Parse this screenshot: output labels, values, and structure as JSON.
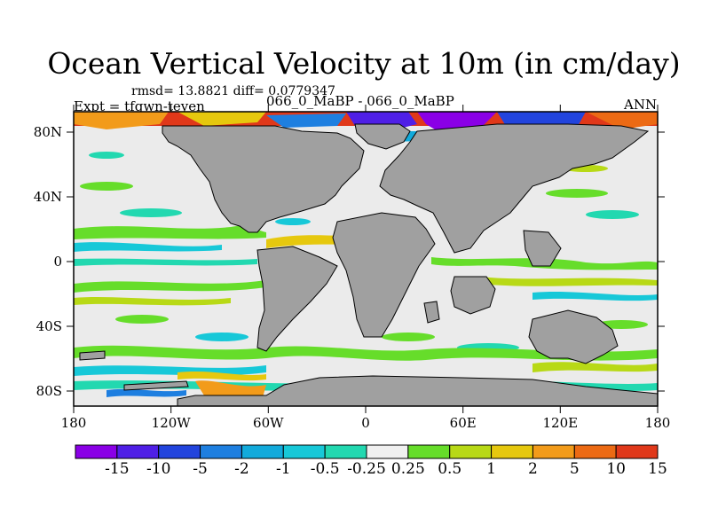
{
  "title": "Ocean Vertical Velocity at 10m (in cm/day)",
  "stats": {
    "rmsd_label": "rmsd= 13.8821",
    "diff_label": "diff= 0.0779347"
  },
  "experiment": "Expt = tfgwn-teyen",
  "case_label": "066_0_MaBP - 066_0_MaBP",
  "season": "ANN",
  "map": {
    "projection": "cylindrical equidistant",
    "lon_ticks": [
      "180",
      "120W",
      "60W",
      "0",
      "60E",
      "120E",
      "180"
    ],
    "lat_ticks": [
      "80N",
      "40N",
      "0",
      "40S",
      "80S"
    ],
    "land_color": "#a0a0a0",
    "ocean_background": "#ebebeb"
  },
  "colorbar": {
    "levels": [
      "-15",
      "-10",
      "-5",
      "-2",
      "-1",
      "-0.5",
      "-0.25",
      "0.25",
      "0.5",
      "1",
      "2",
      "5",
      "10",
      "15"
    ],
    "colors": [
      "#8a00e6",
      "#4f1fe6",
      "#2244dd",
      "#1e7fe0",
      "#12aadb",
      "#17c8d8",
      "#22d8b0",
      "#f0f0f0",
      "#66dd2a",
      "#b8d916",
      "#e6c80e",
      "#f29b1a",
      "#ec6a14",
      "#e0381a"
    ]
  }
}
